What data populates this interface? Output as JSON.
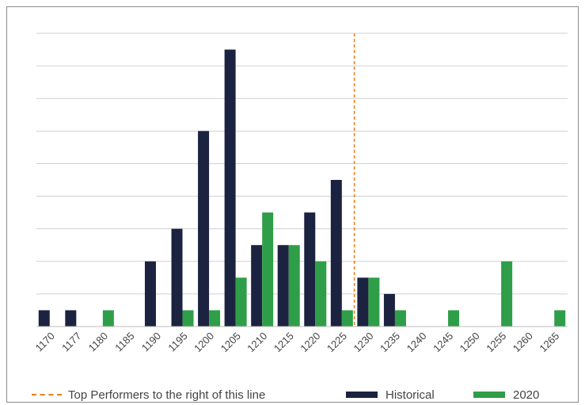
{
  "chart_data": {
    "type": "bar",
    "categories": [
      "1170",
      "1177",
      "1180",
      "1185",
      "1190",
      "1195",
      "1200",
      "1205",
      "1210",
      "1215",
      "1220",
      "1225",
      "1230",
      "1235",
      "1240",
      "1245",
      "1250",
      "1255",
      "1260",
      "1265"
    ],
    "series": [
      {
        "name": "Historical",
        "color": "#1c2340",
        "values": [
          1,
          1,
          0,
          0,
          4,
          6,
          12,
          17,
          5,
          5,
          7,
          9,
          3,
          2,
          0,
          0,
          0,
          0,
          0,
          0
        ]
      },
      {
        "name": "2020",
        "color": "#2f9e48",
        "values": [
          0,
          0,
          1,
          0,
          0,
          1,
          1,
          3,
          7,
          5,
          4,
          1,
          3,
          1,
          0,
          1,
          0,
          4,
          0,
          1
        ]
      }
    ],
    "ylim": [
      0,
      18
    ],
    "grid": true,
    "reference_line": {
      "position_between": [
        "1225",
        "1230"
      ],
      "style": "dashed",
      "color": "#f07c19",
      "label": "Top Performers to the right of this line"
    },
    "legend_position": "bottom"
  },
  "legend": {
    "line_label": "Top Performers to the right of this line",
    "historical_label": "Historical",
    "y2020_label": "2020"
  }
}
